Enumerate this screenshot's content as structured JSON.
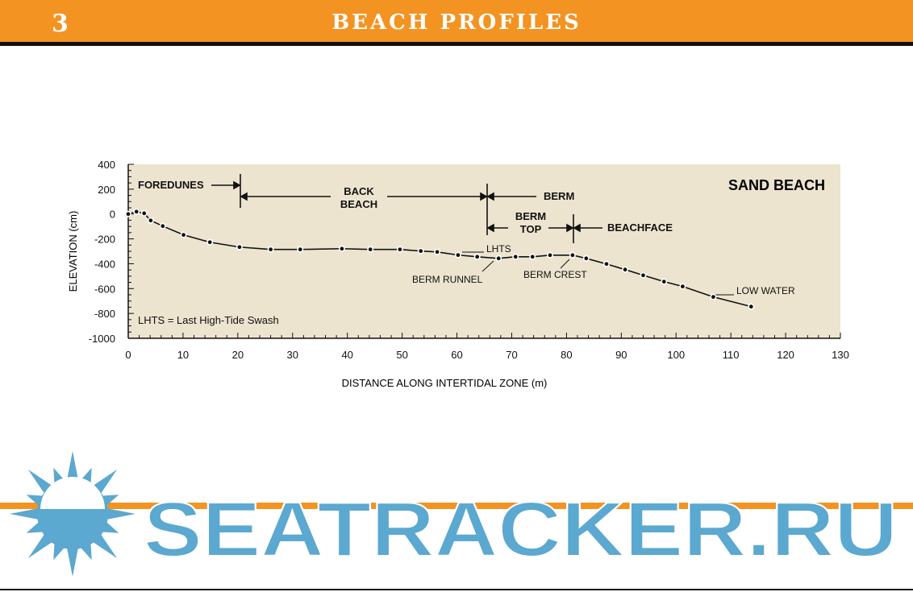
{
  "header": {
    "page_number": "3",
    "title": "BEACH PROFILES",
    "color": "#f39322"
  },
  "watermark": {
    "text": "SEATRACKER.RU",
    "color": "#5ba8d0"
  },
  "chart_data": {
    "type": "line",
    "title": "SAND BEACH",
    "xlabel": "DISTANCE ALONG INTERTIDAL ZONE (m)",
    "ylabel": "ELEVATION (cm)",
    "xlim": [
      0,
      130
    ],
    "ylim": [
      -1000,
      400
    ],
    "xticks": [
      0,
      10,
      20,
      30,
      40,
      50,
      60,
      70,
      80,
      90,
      100,
      110,
      120,
      130
    ],
    "yticks": [
      400,
      200,
      0,
      -200,
      -400,
      -600,
      -800,
      -1000
    ],
    "background": "#ede4cf",
    "grid": false,
    "x": [
      0,
      1.5,
      2.9,
      4.1,
      6.3,
      10.1,
      14.9,
      20.3,
      26.0,
      31.4,
      39.0,
      44.2,
      49.6,
      53.4,
      56.4,
      60.2,
      63.7,
      67.6,
      70.7,
      73.8,
      77.0,
      81.1,
      83.6,
      87.3,
      90.7,
      94.0,
      97.8,
      101.2,
      106.8,
      113.7
    ],
    "y": [
      0,
      19,
      6,
      -52,
      -97,
      -168,
      -227,
      -266,
      -285,
      -285,
      -279,
      -285,
      -285,
      -298,
      -305,
      -330,
      -344,
      -357,
      -344,
      -344,
      -331,
      -331,
      -357,
      -402,
      -447,
      -493,
      -544,
      -583,
      -667,
      -745
    ],
    "annotations": {
      "foredunes": "FOREDUNES",
      "back1": "BACK",
      "back2": "BEACH",
      "berm": "BERM",
      "bermtop1": "BERM",
      "bermtop2": "TOP",
      "beachface": "BEACHFACE",
      "lhts": "LHTS",
      "berm_runnel": "BERM RUNNEL",
      "berm_crest": "BERM CREST",
      "low_water": "LOW WATER",
      "legend_note": "LHTS = Last High-Tide Swash"
    }
  }
}
